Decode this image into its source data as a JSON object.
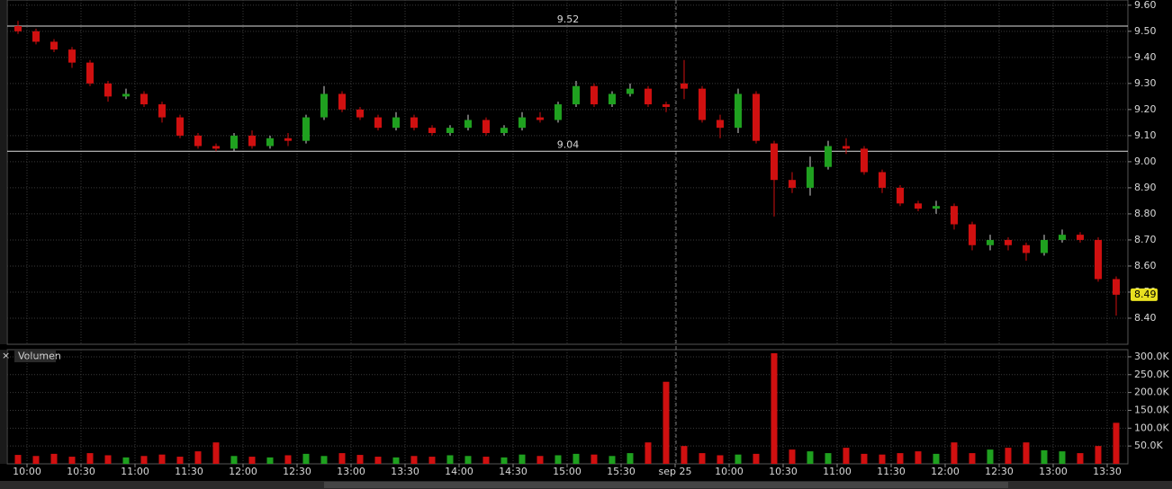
{
  "chart_data": [
    {
      "type": "candlestick",
      "open": [
        9.52,
        9.5,
        9.46,
        9.43,
        9.38,
        9.3,
        9.25,
        9.26,
        9.22,
        9.17,
        9.1,
        9.06,
        9.05,
        9.1,
        9.06,
        9.09,
        9.08,
        9.17,
        9.26,
        9.2,
        9.17,
        9.13,
        9.17,
        9.13,
        9.11,
        9.13,
        9.16,
        9.11,
        9.13,
        9.17,
        9.16,
        9.22,
        9.29,
        9.22,
        9.26,
        9.28,
        9.22,
        9.3,
        9.28,
        9.16,
        9.13,
        9.26,
        9.07,
        8.93,
        8.9,
        8.98,
        9.06,
        9.05,
        8.96,
        8.9,
        8.84,
        8.82,
        8.83,
        8.76,
        8.68,
        8.7,
        8.68,
        8.65,
        8.7,
        8.72,
        8.7,
        8.55
      ],
      "high": [
        9.54,
        9.51,
        9.47,
        9.44,
        9.39,
        9.31,
        9.28,
        9.27,
        9.23,
        9.18,
        9.11,
        9.07,
        9.11,
        9.12,
        9.1,
        9.11,
        9.18,
        9.29,
        9.27,
        9.21,
        9.18,
        9.19,
        9.18,
        9.14,
        9.14,
        9.18,
        9.17,
        9.14,
        9.19,
        9.19,
        9.23,
        9.31,
        9.3,
        9.27,
        9.3,
        9.29,
        9.23,
        9.39,
        9.29,
        9.18,
        9.28,
        9.27,
        9.08,
        8.96,
        9.02,
        9.08,
        9.09,
        9.06,
        8.97,
        8.91,
        8.85,
        8.85,
        8.84,
        8.77,
        8.72,
        8.71,
        8.69,
        8.72,
        8.74,
        8.73,
        8.71,
        8.56
      ],
      "low": [
        9.49,
        9.45,
        9.42,
        9.36,
        9.29,
        9.23,
        9.24,
        9.21,
        9.15,
        9.09,
        9.05,
        9.04,
        9.04,
        9.05,
        9.05,
        9.06,
        9.07,
        9.16,
        9.19,
        9.16,
        9.12,
        9.12,
        9.12,
        9.1,
        9.1,
        9.12,
        9.1,
        9.1,
        9.12,
        9.15,
        9.15,
        9.21,
        9.21,
        9.21,
        9.25,
        9.21,
        9.19,
        9.24,
        9.15,
        9.09,
        9.11,
        9.07,
        8.79,
        8.88,
        8.87,
        8.97,
        9.03,
        8.95,
        8.88,
        8.83,
        8.81,
        8.8,
        8.74,
        8.66,
        8.66,
        8.66,
        8.62,
        8.64,
        8.69,
        8.69,
        8.54,
        8.41
      ],
      "close": [
        9.5,
        9.46,
        9.43,
        9.38,
        9.3,
        9.25,
        9.26,
        9.22,
        9.17,
        9.1,
        9.06,
        9.05,
        9.1,
        9.06,
        9.09,
        9.08,
        9.17,
        9.26,
        9.2,
        9.17,
        9.13,
        9.17,
        9.13,
        9.11,
        9.13,
        9.16,
        9.11,
        9.13,
        9.17,
        9.16,
        9.22,
        9.29,
        9.22,
        9.26,
        9.28,
        9.22,
        9.21,
        9.28,
        9.16,
        9.13,
        9.26,
        9.08,
        8.93,
        8.9,
        8.98,
        9.06,
        9.05,
        8.96,
        8.9,
        8.84,
        8.82,
        8.83,
        8.76,
        8.68,
        8.7,
        8.68,
        8.65,
        8.7,
        8.72,
        8.7,
        8.55,
        8.49
      ],
      "up_color": "#1fa01f",
      "down_color": "#d01010",
      "xlim": [
        -0.6,
        61.65
      ],
      "ylim": [
        8.3,
        9.62
      ],
      "yticks": [
        {
          "value": 8.4,
          "label": "8.40"
        },
        {
          "value": 8.5,
          "label": "8.50"
        },
        {
          "value": 8.6,
          "label": "8.60"
        },
        {
          "value": 8.7,
          "label": "8.70"
        },
        {
          "value": 8.8,
          "label": "8.80"
        },
        {
          "value": 8.9,
          "label": "8.90"
        },
        {
          "value": 9,
          "label": "9.00"
        },
        {
          "value": 9.1,
          "label": "9.10"
        },
        {
          "value": 9.2,
          "label": "9.20"
        },
        {
          "value": 9.3,
          "label": "9.30"
        },
        {
          "value": 9.4,
          "label": "9.40"
        },
        {
          "value": 9.5,
          "label": "9.50"
        },
        {
          "value": 9.6,
          "label": "9.60"
        }
      ],
      "hlines": [
        9.52,
        9.04
      ],
      "last_price": 8.49,
      "grid": true
    },
    {
      "type": "bar",
      "title": "Volumen",
      "values": [
        25000,
        22000,
        28000,
        20000,
        30000,
        24000,
        18000,
        22000,
        26000,
        20000,
        35000,
        60000,
        22000,
        20000,
        18000,
        24000,
        28000,
        22000,
        30000,
        25000,
        20000,
        18000,
        22000,
        20000,
        24000,
        22000,
        20000,
        18000,
        26000,
        22000,
        24000,
        28000,
        26000,
        22000,
        30000,
        60000,
        230000,
        50000,
        30000,
        24000,
        26000,
        28000,
        310000,
        40000,
        35000,
        30000,
        45000,
        28000,
        26000,
        30000,
        35000,
        28000,
        60000,
        30000,
        40000,
        45000,
        60000,
        38000,
        35000,
        30000,
        50000,
        115000
      ],
      "xlim": [
        -0.6,
        61.65
      ],
      "ylim": [
        0,
        320000
      ],
      "yticks": [
        {
          "value": 50000,
          "label": "50.0K"
        },
        {
          "value": 100000,
          "label": "100.0K"
        },
        {
          "value": 150000,
          "label": "150.0K"
        },
        {
          "value": 200000,
          "label": "200.0K"
        },
        {
          "value": 250000,
          "label": "250.0K"
        },
        {
          "value": 300000,
          "label": "300.0K"
        }
      ],
      "xticks": [
        {
          "value": 0.5,
          "label": "10:00"
        },
        {
          "value": 3.5,
          "label": "10:30"
        },
        {
          "value": 6.5,
          "label": "11:00"
        },
        {
          "value": 9.5,
          "label": "11:30"
        },
        {
          "value": 12.5,
          "label": "12:00"
        },
        {
          "value": 15.5,
          "label": "12:30"
        },
        {
          "value": 18.5,
          "label": "13:00"
        },
        {
          "value": 21.5,
          "label": "13:30"
        },
        {
          "value": 24.5,
          "label": "14:00"
        },
        {
          "value": 27.5,
          "label": "14:30"
        },
        {
          "value": 30.5,
          "label": "15:00"
        },
        {
          "value": 33.5,
          "label": "15:30"
        },
        {
          "value": 36.5,
          "label": "sep 25"
        },
        {
          "value": 39.5,
          "label": "10:00"
        },
        {
          "value": 42.5,
          "label": "10:30"
        },
        {
          "value": 45.5,
          "label": "11:00"
        },
        {
          "value": 48.5,
          "label": "11:30"
        },
        {
          "value": 51.5,
          "label": "12:00"
        },
        {
          "value": 54.5,
          "label": "12:30"
        },
        {
          "value": 57.5,
          "label": "13:00"
        },
        {
          "value": 60.5,
          "label": "13:30"
        }
      ],
      "grid": true
    }
  ]
}
